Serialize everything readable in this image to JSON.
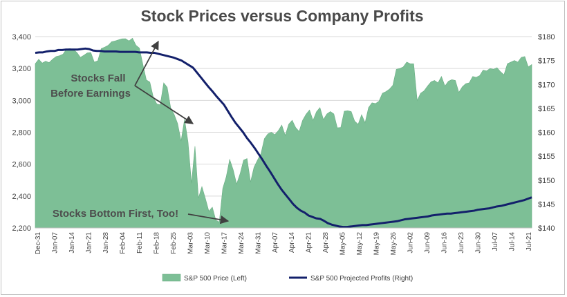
{
  "chart_data": {
    "type": "area",
    "title": "Stock Prices versus Company Profits",
    "y_left_ticks": [
      "2,200",
      "2,400",
      "2,600",
      "2,800",
      "3,000",
      "3,200",
      "3,400"
    ],
    "y_right_ticks": [
      "$140",
      "$145",
      "$150",
      "$155",
      "$160",
      "$165",
      "$170",
      "$175",
      "$180"
    ],
    "ylim_left": [
      2200,
      3400
    ],
    "ylim_right": [
      140,
      180
    ],
    "x_ticks": [
      "Dec-31",
      "Jan-07",
      "Jan-14",
      "Jan-21",
      "Jan-28",
      "Feb-04",
      "Feb-11",
      "Feb-18",
      "Feb-25",
      "Mar-03",
      "Mar-10",
      "Mar-17",
      "Mar-24",
      "Mar-31",
      "Apr-07",
      "Apr-14",
      "Apr-21",
      "Apr-28",
      "May-05",
      "May-12",
      "May-19",
      "May-26",
      "Jun-02",
      "Jun-09",
      "Jun-16",
      "Jun-23",
      "Jun-30",
      "Jul-07",
      "Jul-14",
      "Jul-21"
    ],
    "grid": true,
    "legend_position": "bottom",
    "series": [
      {
        "name": "S&P 500 Price (Left)",
        "axis": "left",
        "color": "#7dbf96",
        "values": [
          3230,
          3258,
          3234,
          3246,
          3237,
          3258,
          3275,
          3280,
          3290,
          3322,
          3325,
          3320,
          3300,
          3270,
          3283,
          3298,
          3300,
          3240,
          3248,
          3325,
          3334,
          3345,
          3368,
          3373,
          3380,
          3386,
          3387,
          3373,
          3390,
          3346,
          3328,
          3225,
          3128,
          3115,
          3020,
          2978,
          2972,
          3110,
          3082,
          2954,
          2912,
          2855,
          2745,
          2882,
          2740,
          2480,
          2712,
          2387,
          2459,
          2385,
          2305,
          2330,
          2250,
          2237,
          2447,
          2520,
          2630,
          2565,
          2475,
          2540,
          2625,
          2635,
          2488,
          2580,
          2625,
          2665,
          2760,
          2790,
          2800,
          2785,
          2810,
          2845,
          2780,
          2850,
          2875,
          2830,
          2805,
          2875,
          2913,
          2940,
          2875,
          2929,
          2955,
          2880,
          2915,
          2930,
          2915,
          2828,
          2830,
          2932,
          2935,
          2930,
          2870,
          2850,
          2910,
          2860,
          2955,
          2985,
          2980,
          2995,
          3045,
          3055,
          3070,
          3095,
          3195,
          3200,
          3210,
          3240,
          3230,
          3230,
          3000,
          3045,
          3060,
          3090,
          3116,
          3125,
          3110,
          3150,
          3090,
          3120,
          3130,
          3125,
          3050,
          3085,
          3105,
          3110,
          3150,
          3145,
          3155,
          3190,
          3185,
          3200,
          3195,
          3205,
          3180,
          3160,
          3230,
          3240,
          3250,
          3240,
          3270,
          3275,
          3210,
          3225
        ]
      },
      {
        "name": "S&P 500 Projected Profits (Right)",
        "axis": "right",
        "color": "#13206b",
        "values": [
          176.6,
          176.7,
          176.7,
          176.9,
          177.0,
          177.0,
          177.2,
          177.2,
          177.3,
          177.3,
          177.3,
          177.3,
          177.4,
          177.5,
          177.4,
          177.1,
          177.0,
          177.0,
          176.9,
          176.9,
          176.9,
          176.9,
          176.8,
          176.8,
          176.8,
          176.8,
          176.8,
          176.7,
          176.7,
          176.7,
          176.6,
          176.6,
          176.4,
          176.2,
          176.0,
          175.8,
          175.6,
          175.3,
          175.0,
          174.5,
          174.0,
          173.5,
          172.5,
          171.5,
          170.5,
          169.5,
          168.6,
          167.6,
          166.7,
          165.8,
          164.5,
          163.2,
          162.0,
          161.0,
          160.0,
          158.8,
          157.8,
          156.7,
          155.5,
          154.3,
          153.0,
          151.8,
          150.5,
          149.2,
          148.0,
          147.0,
          146.0,
          145.0,
          144.2,
          143.6,
          143.2,
          142.6,
          142.3,
          142.0,
          141.9,
          141.5,
          141.0,
          140.7,
          140.5,
          140.3,
          140.2,
          140.2,
          140.3,
          140.4,
          140.5,
          140.6,
          140.6,
          140.7,
          140.8,
          140.9,
          141.0,
          141.1,
          141.2,
          141.3,
          141.4,
          141.6,
          141.8,
          141.9,
          142.0,
          142.1,
          142.2,
          142.3,
          142.4,
          142.6,
          142.7,
          142.8,
          142.9,
          143.0,
          143.0,
          143.1,
          143.2,
          143.3,
          143.4,
          143.5,
          143.6,
          143.8,
          143.9,
          144.0,
          144.1,
          144.3,
          144.5,
          144.6,
          144.8,
          145.0,
          145.2,
          145.4,
          145.6,
          145.8,
          146.1,
          146.4
        ]
      }
    ],
    "annotations": [
      {
        "lines": [
          "Stocks Fall",
          "Before Earnings"
        ]
      },
      {
        "lines": [
          "Stocks Bottom First, Too!"
        ]
      }
    ]
  },
  "legend": {
    "price_label": "S&P 500 Price (Left)",
    "profits_label": "S&P 500 Projected Profits (Right)"
  }
}
